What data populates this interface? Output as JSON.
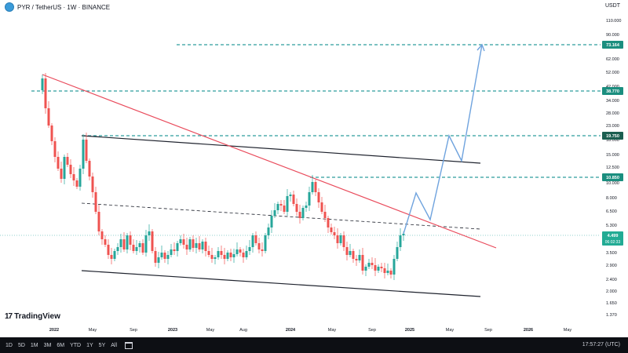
{
  "header": {
    "symbol": "PYR / TetherUS · 1W · BINANCE",
    "currency": "USDT"
  },
  "footer": {
    "ranges": [
      "1D",
      "5D",
      "1M",
      "3M",
      "6M",
      "YTD",
      "1Y",
      "5Y",
      "All"
    ],
    "time": "17:57:27 (UTC)",
    "brand": "TradingView"
  },
  "chart_data": {
    "type": "candlestick",
    "y_scale": "log",
    "y_ticks": [
      "110.000",
      "90.000",
      "62.000",
      "52.000",
      "42.000",
      "34.000",
      "28.000",
      "23.000",
      "18.000",
      "15.000",
      "12.500",
      "10.000",
      "8.000",
      "6.500",
      "5.300",
      "4.300",
      "3.500",
      "2.900",
      "2.400",
      "2.000",
      "1.650",
      "1.370"
    ],
    "x_ticks": [
      "2022",
      "May",
      "Sep",
      "2023",
      "May",
      "Aug",
      "2024",
      "May",
      "Sep",
      "2025",
      "May",
      "Sep",
      "2026",
      "May"
    ],
    "price_labels": [
      {
        "text": "73.164",
        "color": "#1b8e7f"
      },
      {
        "text": "38.770",
        "color": "#1b8e7f"
      },
      {
        "text": "19.750",
        "color": "#1b5e50"
      },
      {
        "text": "10.850",
        "color": "#1b8e7f"
      }
    ],
    "current_price": {
      "text": "4.499",
      "countdown": "06:02:33",
      "color": "#22ab94"
    },
    "colors": {
      "up": "#26a69a",
      "down": "#ef5350",
      "trendline": "#e94a5b",
      "projection": "#6fa3de",
      "level": "#1b8e7f"
    }
  }
}
